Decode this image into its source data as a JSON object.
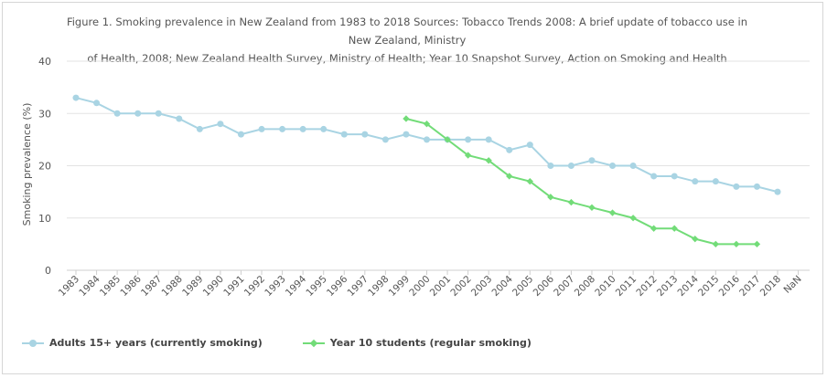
{
  "chart_data": {
    "type": "line",
    "title": "Figure 1. Smoking prevalence in New Zealand from 1983 to 2018 Sources: Tobacco Trends 2008: A brief update of tobacco use in New Zealand, Ministry of Health, 2008; New Zealand Health Survey, Ministry of Health; Year 10 Snapshot Survey, Action on Smoking and Health",
    "title_lines": [
      "Figure 1. Smoking prevalence in New Zealand from 1983 to 2018 Sources: Tobacco Trends 2008: A brief update of tobacco use in New Zealand, Ministry",
      "of Health, 2008; New Zealand Health Survey, Ministry of Health; Year 10 Snapshot Survey, Action on Smoking and Health"
    ],
    "ylabel": "Smoking prevalence (%)",
    "xlabel": "",
    "ylim": [
      0,
      40
    ],
    "yticks": [
      0,
      10,
      20,
      30,
      40
    ],
    "grid": true,
    "legend_position": "bottom-left",
    "categories": [
      "1983",
      "1984",
      "1985",
      "1986",
      "1987",
      "1988",
      "1989",
      "1990",
      "1991",
      "1992",
      "1993",
      "1994",
      "1995",
      "1996",
      "1997",
      "1998",
      "1999",
      "2000",
      "2001",
      "2002",
      "2003",
      "2004",
      "2005",
      "2006",
      "2007",
      "2008",
      "2010",
      "2011",
      "2012",
      "2013",
      "2014",
      "2015",
      "2016",
      "2017",
      "2018",
      "NaN"
    ],
    "series": [
      {
        "name": "Adults 15+ years (currently smoking)",
        "color": "#a9d4e3",
        "marker": "circle",
        "values": [
          33,
          32,
          30,
          30,
          30,
          29,
          27,
          28,
          26,
          27,
          27,
          27,
          27,
          26,
          26,
          25,
          26,
          25,
          25,
          25,
          25,
          23,
          24,
          20,
          20,
          21,
          20,
          20,
          18,
          18,
          17,
          17,
          16,
          16,
          15,
          null
        ]
      },
      {
        "name": "Year 10 students (regular smoking)",
        "color": "#72dc78",
        "marker": "diamond",
        "values": [
          null,
          null,
          null,
          null,
          null,
          null,
          null,
          null,
          null,
          null,
          null,
          null,
          null,
          null,
          null,
          null,
          29,
          28,
          25,
          22,
          21,
          18,
          17,
          14,
          13,
          12,
          11,
          10,
          8,
          8,
          6,
          5,
          5,
          5,
          null,
          null
        ]
      }
    ]
  },
  "colors": {
    "grid": "#e3e3e3",
    "axis_text": "#555555"
  }
}
